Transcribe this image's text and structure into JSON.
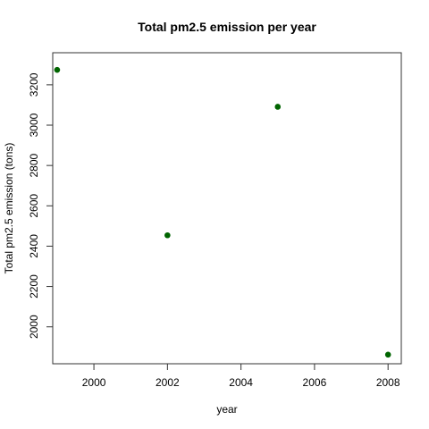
{
  "chart_data": {
    "type": "scatter",
    "title": "Total pm2.5 emission per year",
    "xlabel": "year",
    "ylabel": "Total pm2.5 emission (tons)",
    "x": [
      1999,
      2002,
      2005,
      2008
    ],
    "y": [
      3274,
      2454,
      3091,
      1862
    ],
    "xlim": [
      1998.88,
      2008.36
    ],
    "ylim": [
      1817,
      3359
    ],
    "xticks": [
      2000,
      2002,
      2004,
      2006,
      2008
    ],
    "yticks": [
      2000,
      2200,
      2400,
      2600,
      2800,
      3000,
      3200
    ],
    "point_color": "#006400",
    "grid": false,
    "legend": "none"
  }
}
